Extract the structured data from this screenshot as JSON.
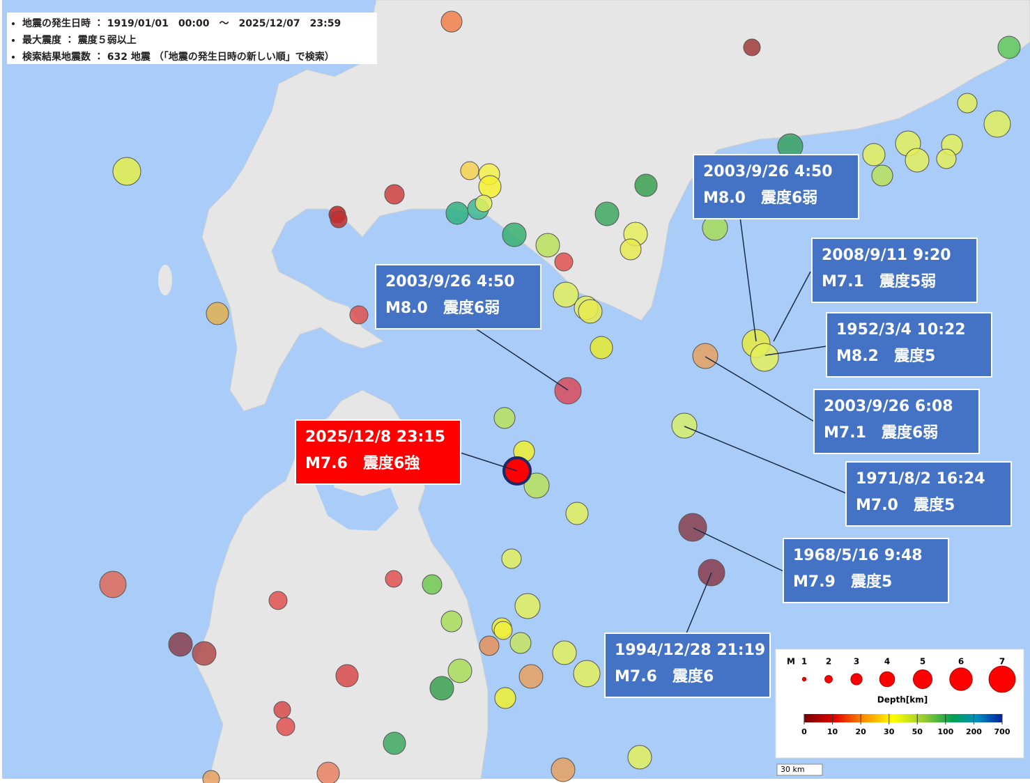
{
  "header": {
    "lines": [
      "地震の発生日時 ： 1919/01/01　00:00　～　2025/12/07　23:59",
      "最大震度 ： 震度５弱以上",
      "検索結果地震数 ： 632 地震 （「地震の発生日時の新しい順」で検索）"
    ]
  },
  "callouts": [
    {
      "date": "2003/9/26 4:50",
      "magnitude": "M8.0",
      "intensity": "震度6弱"
    },
    {
      "date": "2008/9/11 9:20",
      "magnitude": "M7.1",
      "intensity": "震度5弱"
    },
    {
      "date": "1952/3/4 10:22",
      "magnitude": "M8.2",
      "intensity": "震度5"
    },
    {
      "date": "2003/9/26 4:50",
      "magnitude": "M8.0",
      "intensity": "震度6弱"
    },
    {
      "date": "2003/9/26 6:08",
      "magnitude": "M7.1",
      "intensity": "震度6弱"
    },
    {
      "date": "2025/12/8 23:15",
      "magnitude": "M7.6",
      "intensity": "震度6強"
    },
    {
      "date": "1971/8/2 16:24",
      "magnitude": "M7.0",
      "intensity": "震度5"
    },
    {
      "date": "1968/5/16 9:48",
      "magnitude": "M7.9",
      "intensity": "震度5"
    },
    {
      "date": "1994/12/28 21:19",
      "magnitude": "M7.6",
      "intensity": "震度6"
    }
  ],
  "legend": {
    "magnitude_title": "M",
    "magnitudes": [
      1,
      2,
      3,
      4,
      5,
      6,
      7
    ],
    "depth_title": "Depth[km]",
    "depth_ticks": [
      0,
      10,
      20,
      30,
      50,
      100,
      200,
      700
    ]
  },
  "scale": "30 km"
}
